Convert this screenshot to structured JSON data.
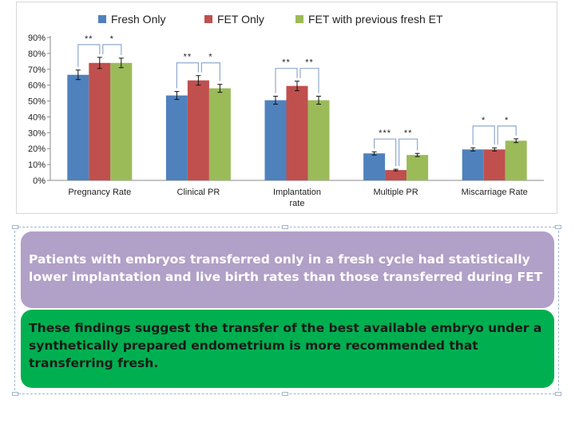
{
  "chart_data": {
    "type": "bar",
    "categories": [
      "Pregnancy Rate",
      "Clinical PR",
      "Implantation rate",
      "Multiple PR",
      "Miscarriage Rate"
    ],
    "category_lines": [
      [
        "Pregnancy Rate"
      ],
      [
        "Clinical PR"
      ],
      [
        "Implantation",
        "rate"
      ],
      [
        "Multiple PR"
      ],
      [
        "Miscarriage Rate"
      ]
    ],
    "series": [
      {
        "name": "Fresh Only",
        "color": "#4f81bd",
        "values": [
          66.5,
          53.5,
          50.5,
          17,
          19.5
        ],
        "errors": [
          3,
          2.5,
          2.5,
          1,
          1
        ]
      },
      {
        "name": "FET Only",
        "color": "#c0504d",
        "values": [
          74,
          63,
          59.5,
          6.5,
          19.5
        ],
        "errors": [
          3.5,
          3,
          3,
          0.5,
          1
        ]
      },
      {
        "name": "FET with previous fresh ET",
        "color": "#9bbb59",
        "values": [
          74,
          58,
          50.5,
          16,
          25
        ],
        "errors": [
          3,
          2.5,
          2.5,
          1,
          1.2
        ]
      }
    ],
    "yticks": [
      "90%",
      "80%",
      "70%",
      "60%",
      "50%",
      "40%",
      "30%",
      "20%",
      "10%",
      "0%"
    ],
    "ylim": [
      0,
      90
    ],
    "legend_position": "top",
    "grid": false,
    "significance": [
      {
        "pairs": [
          [
            "**",
            "*"
          ]
        ],
        "left": "**",
        "right": "*"
      },
      {
        "left": "**",
        "right": "*"
      },
      {
        "left": "**",
        "right": "**"
      },
      {
        "left": "***",
        "right": "**"
      },
      {
        "left": "*",
        "right": "*"
      }
    ]
  },
  "text_boxes": {
    "purple": "Patients with embryos transferred only in a fresh cycle had statistically lower implantation and live birth rates than those transferred during FET",
    "green": "These findings suggest the transfer of the best available embryo under a synthetically prepared endometrium is more recommended that transferring fresh."
  },
  "colors": {
    "purple_box": "#b1a0c7",
    "green_box": "#00b050"
  }
}
